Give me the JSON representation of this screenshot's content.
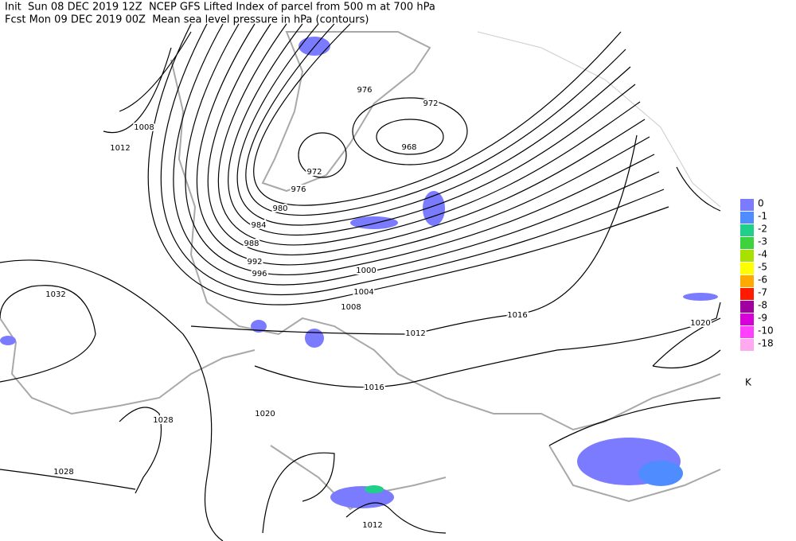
{
  "header": {
    "line1": "Init  Sun 08 DEC 2019 12Z  NCEP GFS Lifted Index of parcel from 500 m at 700 hPa",
    "line2": "Fcst Mon 09 DEC 2019 00Z  Mean sea level pressure in hPa (contours)"
  },
  "contour_labels": [
    "976",
    "972",
    "968",
    "972",
    "976",
    "980",
    "984",
    "988",
    "992",
    "996",
    "1000",
    "1004",
    "1008",
    "1012",
    "1016",
    "1020",
    "1016",
    "1020",
    "1028",
    "1028",
    "1032",
    "1008",
    "1012",
    "1012"
  ],
  "legend": {
    "items": [
      {
        "label": "0",
        "color": "#7b7bff"
      },
      {
        "label": "-1",
        "color": "#4f8cff"
      },
      {
        "label": "-2",
        "color": "#1fcf8a"
      },
      {
        "label": "-3",
        "color": "#3fd23f"
      },
      {
        "label": "-4",
        "color": "#a8e000"
      },
      {
        "label": "-5",
        "color": "#ffff00"
      },
      {
        "label": "-6",
        "color": "#ffaa00"
      },
      {
        "label": "-7",
        "color": "#ff1a00"
      },
      {
        "label": "-8",
        "color": "#a000a0"
      },
      {
        "label": "-9",
        "color": "#d800d8"
      },
      {
        "label": "-10",
        "color": "#ff40ff"
      },
      {
        "label": "-18",
        "color": "#ffaaee"
      }
    ],
    "unit": "K"
  }
}
